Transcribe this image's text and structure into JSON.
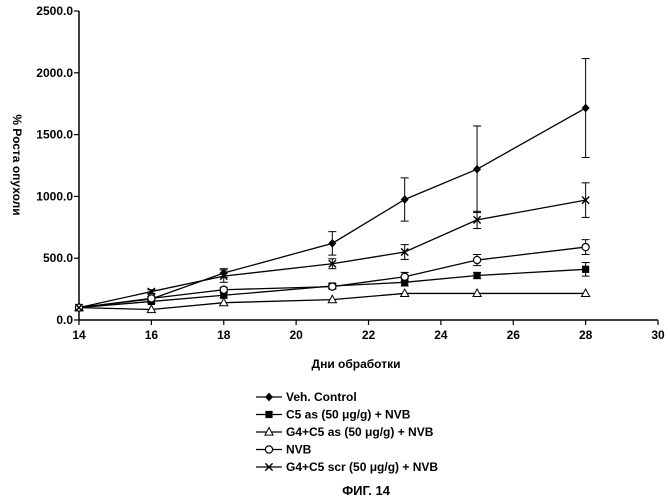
{
  "chart_data": {
    "type": "line",
    "xlabel": "Дни обработки",
    "ylabel": "% Роста опухоли",
    "xlim": [
      14,
      30
    ],
    "ylim": [
      0,
      2500
    ],
    "x_ticks": [
      "14",
      "16",
      "18",
      "20",
      "22",
      "24",
      "26",
      "28",
      "30"
    ],
    "y_ticks": [
      "0.0",
      "500.0",
      "1000.0",
      "1500.0",
      "2000.0",
      "2500.0"
    ],
    "grid": false,
    "legend_position": "below",
    "series": [
      {
        "name": "Veh. Control",
        "marker": "diamond",
        "x": [
          14,
          16,
          18,
          21,
          23,
          25,
          28
        ],
        "y": [
          100,
          170,
          380,
          620,
          975,
          1220,
          1715
        ],
        "err": [
          0,
          15,
          35,
          95,
          175,
          350,
          400
        ]
      },
      {
        "name": "C5 as (50 μg/g) + NVB",
        "marker": "square",
        "x": [
          14,
          16,
          18,
          21,
          23,
          25,
          28
        ],
        "y": [
          100,
          150,
          200,
          275,
          305,
          360,
          410
        ],
        "err": [
          0,
          15,
          20,
          20,
          30,
          25,
          55
        ]
      },
      {
        "name": "G4+C5 as (50 μg/g) + NVB",
        "marker": "triangle-open",
        "x": [
          14,
          16,
          18,
          21,
          23,
          25,
          28
        ],
        "y": [
          100,
          85,
          140,
          165,
          215,
          215,
          215
        ],
        "err": [
          0,
          0,
          0,
          0,
          0,
          0,
          0
        ]
      },
      {
        "name": "NVB",
        "marker": "circle-open",
        "x": [
          14,
          16,
          18,
          21,
          23,
          25,
          28
        ],
        "y": [
          100,
          175,
          245,
          270,
          350,
          485,
          590
        ],
        "err": [
          0,
          15,
          20,
          20,
          35,
          45,
          60
        ]
      },
      {
        "name": "G4+C5 scr (50 μg/g) + NVB",
        "marker": "x",
        "x": [
          14,
          16,
          18,
          21,
          23,
          25,
          28
        ],
        "y": [
          100,
          230,
          355,
          455,
          550,
          810,
          970
        ],
        "err": [
          0,
          15,
          50,
          40,
          60,
          70,
          140
        ]
      }
    ]
  },
  "caption": "ФИГ. 14"
}
